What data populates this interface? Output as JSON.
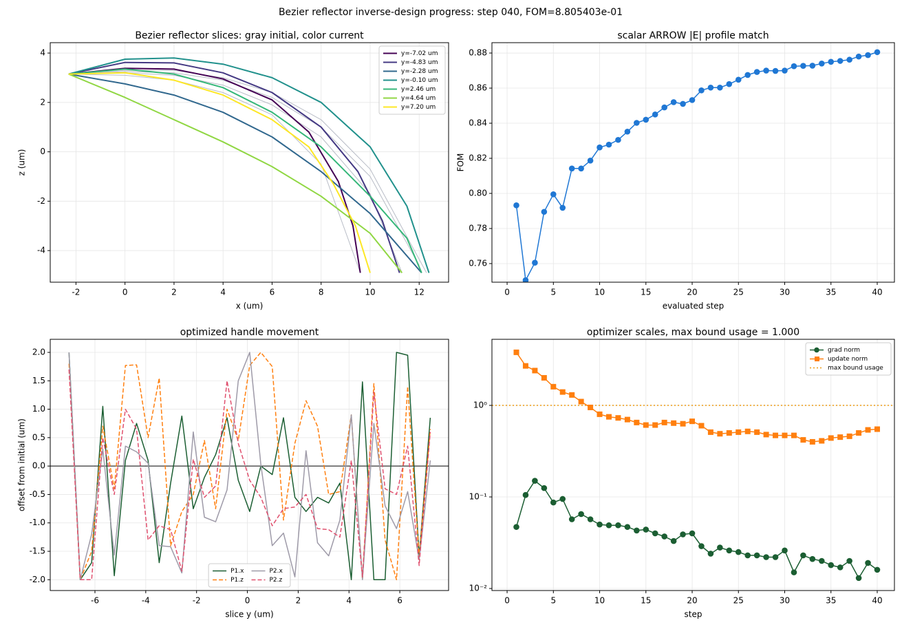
{
  "title": "Bezier reflector inverse-design progress: step 040, FOM=8.805403e-01",
  "chart_data": [
    {
      "type": "line",
      "title": "Bezier reflector slices: gray initial, color current",
      "x_label": "x (um)",
      "y_label": "z (um)",
      "xlim": [
        -3.05,
        13.2
      ],
      "ylim": [
        -5.28,
        4.42
      ],
      "xticks": [
        -2,
        0,
        2,
        4,
        6,
        8,
        10,
        12
      ],
      "yticks": [
        -4,
        -2,
        0,
        2,
        4
      ],
      "grid": true,
      "legend": "upper right",
      "legend_ncol": 1,
      "series": [
        {
          "color": "#b8bcc6",
          "width": 1,
          "x": [
            -2.3,
            0,
            2,
            4,
            6,
            8,
            9.6
          ],
          "values": [
            3.15,
            3.1,
            2.9,
            2.4,
            1.5,
            -0.5,
            -4.9
          ]
        },
        {
          "color": "#b8bcc6",
          "width": 1,
          "x": [
            -2.3,
            0,
            2,
            4,
            6,
            8,
            10,
            11.3
          ],
          "values": [
            3.15,
            3.2,
            3.1,
            2.7,
            1.9,
            0.6,
            -1.7,
            -4.9
          ]
        },
        {
          "color": "#b8bcc6",
          "width": 1,
          "x": [
            -2.3,
            0,
            2,
            4,
            6,
            8,
            10,
            12
          ],
          "values": [
            3.15,
            3.25,
            3.2,
            2.9,
            2.2,
            1.0,
            -1.0,
            -4.6
          ]
        },
        {
          "color": "#b8bcc6",
          "width": 1,
          "x": [
            -2.3,
            0,
            2,
            4,
            6,
            8,
            10,
            12.3
          ],
          "values": [
            3.15,
            3.3,
            3.3,
            3.0,
            2.4,
            1.3,
            -0.7,
            -4.9
          ]
        },
        {
          "name": "y=-7.02 um",
          "color": "#440154",
          "width": 2,
          "x": [
            -2.3,
            0,
            2,
            4,
            6,
            7.5,
            8.7,
            9.3,
            9.6
          ],
          "values": [
            3.15,
            3.38,
            3.35,
            2.95,
            2.1,
            0.8,
            -1.2,
            -3.0,
            -4.9
          ]
        },
        {
          "name": "y=-4.83 um",
          "color": "#443983",
          "width": 2,
          "x": [
            -2.3,
            0,
            2,
            4,
            6,
            8,
            9.5,
            10.5,
            11.2
          ],
          "values": [
            3.15,
            3.62,
            3.6,
            3.2,
            2.4,
            1.0,
            -0.8,
            -2.8,
            -4.9
          ]
        },
        {
          "name": "y=-2.28 um",
          "color": "#31688e",
          "width": 2,
          "x": [
            -2.3,
            0,
            2,
            4,
            6,
            8,
            10,
            12.1
          ],
          "values": [
            3.15,
            2.75,
            2.3,
            1.6,
            0.6,
            -0.8,
            -2.5,
            -4.9
          ]
        },
        {
          "name": "y=-0.10 um",
          "color": "#21918c",
          "width": 2,
          "x": [
            -2.3,
            0,
            2,
            4,
            6,
            8,
            10,
            11.5,
            12.4
          ],
          "values": [
            3.15,
            3.75,
            3.8,
            3.55,
            3.0,
            2.0,
            0.2,
            -2.2,
            -4.9
          ]
        },
        {
          "name": "y=2.46 um",
          "color": "#35b779",
          "width": 2,
          "x": [
            -2.3,
            0,
            2,
            4,
            6,
            8,
            10,
            11.5,
            12.1
          ],
          "values": [
            3.15,
            3.35,
            3.15,
            2.6,
            1.6,
            0.2,
            -1.8,
            -3.5,
            -4.9
          ]
        },
        {
          "name": "y=4.64 um",
          "color": "#90d743",
          "width": 2,
          "x": [
            -2.3,
            0,
            2,
            4,
            6,
            8,
            10,
            11.3
          ],
          "values": [
            3.15,
            2.2,
            1.3,
            0.4,
            -0.6,
            -1.8,
            -3.3,
            -4.9
          ]
        },
        {
          "name": "y=7.20 um",
          "color": "#fde725",
          "width": 2,
          "x": [
            -2.3,
            0,
            2,
            4,
            6,
            7.5,
            8.5,
            9.4,
            10
          ],
          "values": [
            3.15,
            3.2,
            2.9,
            2.3,
            1.3,
            0.2,
            -1.3,
            -3.0,
            -4.9
          ]
        }
      ]
    },
    {
      "type": "line",
      "title": "scalar ARROW |E| profile match",
      "x_label": "evaluated step",
      "y_label": "FOM",
      "xlim": [
        -1.64,
        41.86
      ],
      "ylim": [
        0.7494,
        0.8859
      ],
      "xticks": [
        0,
        5,
        10,
        15,
        20,
        25,
        30,
        35,
        40
      ],
      "yticks": [
        0.76,
        0.78,
        {
          "value": 0.8,
          "label": "0.80"
        },
        0.82,
        0.84,
        0.86,
        0.88
      ],
      "grid": true,
      "x": [
        1,
        2,
        3,
        4,
        5,
        6,
        7,
        8,
        9,
        10,
        11,
        12,
        13,
        14,
        15,
        16,
        17,
        18,
        19,
        20,
        21,
        22,
        23,
        24,
        25,
        26,
        27,
        28,
        29,
        30,
        31,
        32,
        33,
        34,
        35,
        36,
        37,
        38,
        39,
        40
      ],
      "series": [
        {
          "color": "#1f77d4",
          "width": 1.5,
          "marker": "o",
          "values": [
            0.7932,
            0.7505,
            0.7605,
            0.7895,
            0.7995,
            0.7918,
            0.8142,
            0.8142,
            0.8187,
            0.8262,
            0.8278,
            0.8305,
            0.8352,
            0.8402,
            0.842,
            0.845,
            0.849,
            0.852,
            0.851,
            0.8532,
            0.8587,
            0.8603,
            0.8603,
            0.8623,
            0.8648,
            0.8675,
            0.8692,
            0.87,
            0.8698,
            0.87,
            0.8725,
            0.8727,
            0.8728,
            0.874,
            0.875,
            0.8755,
            0.8762,
            0.878,
            0.8788,
            0.8805
          ]
        }
      ]
    },
    {
      "type": "line",
      "title": "optimized handle movement",
      "x_label": "slice y (um)",
      "y_label": "offset from initial (um)",
      "xlim": [
        -7.76,
        7.92
      ],
      "ylim": [
        -2.19,
        2.23
      ],
      "xticks": [
        -6,
        -4,
        -2,
        0,
        2,
        4,
        6
      ],
      "yticks": [
        {
          "value": -2,
          "label": "-2.0"
        },
        -1.5,
        {
          "value": -1,
          "label": "-1.0"
        },
        -0.5,
        {
          "value": 0,
          "label": "0.0"
        },
        0.5,
        {
          "value": 1,
          "label": "1.0"
        },
        1.5,
        {
          "value": 2,
          "label": "2.0"
        }
      ],
      "grid": true,
      "legend": "lower center",
      "legend_ncol": 2,
      "hlines": [
        {
          "value": 0,
          "color": "#000000"
        }
      ],
      "x": [
        -7.02,
        -6.58,
        -6.13,
        -5.69,
        -5.24,
        -4.8,
        -4.36,
        -3.91,
        -3.47,
        -3.02,
        -2.58,
        -2.13,
        -1.69,
        -1.25,
        -0.8,
        -0.36,
        0.09,
        0.53,
        0.98,
        1.42,
        1.87,
        2.31,
        2.76,
        3.2,
        3.64,
        4.09,
        4.53,
        4.98,
        5.42,
        5.87,
        6.31,
        6.76,
        7.2
      ],
      "series": [
        {
          "name": "P1.x",
          "color": "#1b5e32",
          "width": 1.5,
          "values": [
            2.0,
            -2.0,
            -1.7,
            1.05,
            -1.93,
            0.1,
            0.75,
            0.1,
            -1.7,
            -0.3,
            0.88,
            -0.75,
            -0.2,
            0.2,
            0.85,
            -0.25,
            -0.8,
            0.0,
            -0.15,
            0.85,
            -0.55,
            -0.8,
            -0.55,
            -0.65,
            -0.3,
            -2.0,
            1.48,
            -2.0,
            -2.0,
            2.0,
            1.95,
            -1.6,
            0.85
          ]
        },
        {
          "name": "P1.z",
          "color": "#ff7f0e",
          "width": 1.5,
          "style": "dashed",
          "values": [
            1.8,
            -2.0,
            -1.5,
            0.7,
            -0.4,
            1.77,
            1.78,
            0.5,
            1.55,
            -1.4,
            -0.8,
            -0.5,
            0.45,
            -0.75,
            1.0,
            0.45,
            1.77,
            2.0,
            1.75,
            -0.95,
            0.4,
            1.15,
            0.7,
            -0.5,
            -0.45,
            0.9,
            -2.0,
            1.45,
            -1.3,
            -2.0,
            1.4,
            -1.6,
            0.65
          ]
        },
        {
          "name": "P2.x",
          "color": "#9e9aa8",
          "width": 1.5,
          "values": [
            2.0,
            -2.0,
            -1.2,
            0.3,
            -1.57,
            0.35,
            0.25,
            0.05,
            -1.4,
            -1.42,
            -1.88,
            0.6,
            -0.9,
            -0.98,
            -0.42,
            1.5,
            2.0,
            0.03,
            -1.4,
            -1.18,
            -1.95,
            0.27,
            -1.35,
            -1.58,
            -0.95,
            0.9,
            -2.0,
            0.75,
            -0.7,
            -1.1,
            -0.45,
            -1.65,
            0.1
          ]
        },
        {
          "name": "P2.z",
          "color": "#e0506e",
          "width": 1.5,
          "style": "dashed",
          "values": [
            1.7,
            -2.0,
            -2.0,
            0.5,
            -0.5,
            1.0,
            0.65,
            -1.3,
            -1.05,
            -1.12,
            -1.85,
            0.12,
            -0.55,
            -0.35,
            1.5,
            0.4,
            -0.25,
            -0.55,
            -1.05,
            -0.75,
            -0.72,
            -0.5,
            -1.1,
            -1.12,
            -1.25,
            0.1,
            -1.95,
            1.3,
            -0.4,
            -0.5,
            0.35,
            -1.75,
            0.6
          ]
        }
      ]
    },
    {
      "type": "line",
      "title": "optimizer scales, max bound usage = 1.000",
      "x_label": "step",
      "log_y": true,
      "xlim": [
        -1.64,
        41.86
      ],
      "ylim": [
        0.0095,
        5.27
      ],
      "xticks": [
        0,
        5,
        10,
        15,
        20,
        25,
        30,
        35,
        40
      ],
      "yticks": [
        {
          "value": 0.01,
          "label": "10⁻²"
        },
        {
          "value": 0.1,
          "label": "10⁻¹"
        },
        {
          "value": 1,
          "label": "10⁰"
        }
      ],
      "grid": true,
      "legend": "upper right",
      "legend_ncol": 1,
      "x": [
        1,
        2,
        3,
        4,
        5,
        6,
        7,
        8,
        9,
        10,
        11,
        12,
        13,
        14,
        15,
        16,
        17,
        18,
        19,
        20,
        21,
        22,
        23,
        24,
        25,
        26,
        27,
        28,
        29,
        30,
        31,
        32,
        33,
        34,
        35,
        36,
        37,
        38,
        39,
        40
      ],
      "series": [
        {
          "name": "grad norm",
          "color": "#1b5e32",
          "width": 1.5,
          "marker": "o",
          "values": [
            0.047,
            0.105,
            0.15,
            0.125,
            0.087,
            0.095,
            0.057,
            0.065,
            0.057,
            0.05,
            0.049,
            0.049,
            0.047,
            0.043,
            0.044,
            0.04,
            0.037,
            0.033,
            0.039,
            0.04,
            0.029,
            0.024,
            0.028,
            0.026,
            0.025,
            0.023,
            0.023,
            0.022,
            0.022,
            0.026,
            0.015,
            0.023,
            0.021,
            0.02,
            0.018,
            0.017,
            0.02,
            0.013,
            0.019,
            0.016
          ]
        },
        {
          "name": "update norm",
          "color": "#ff7f0e",
          "width": 1.5,
          "marker": "s",
          "values": [
            3.8,
            2.7,
            2.4,
            2.0,
            1.6,
            1.4,
            1.3,
            1.1,
            0.95,
            0.8,
            0.75,
            0.73,
            0.7,
            0.65,
            0.61,
            0.61,
            0.65,
            0.64,
            0.63,
            0.67,
            0.6,
            0.51,
            0.49,
            0.5,
            0.51,
            0.52,
            0.51,
            0.48,
            0.47,
            0.47,
            0.47,
            0.42,
            0.4,
            0.41,
            0.44,
            0.45,
            0.46,
            0.5,
            0.54,
            0.55
          ]
        }
      ],
      "hlines": [
        {
          "name": "max bound usage",
          "value": 1.0,
          "color": "#ee9a12",
          "style": "dotted"
        }
      ]
    }
  ]
}
